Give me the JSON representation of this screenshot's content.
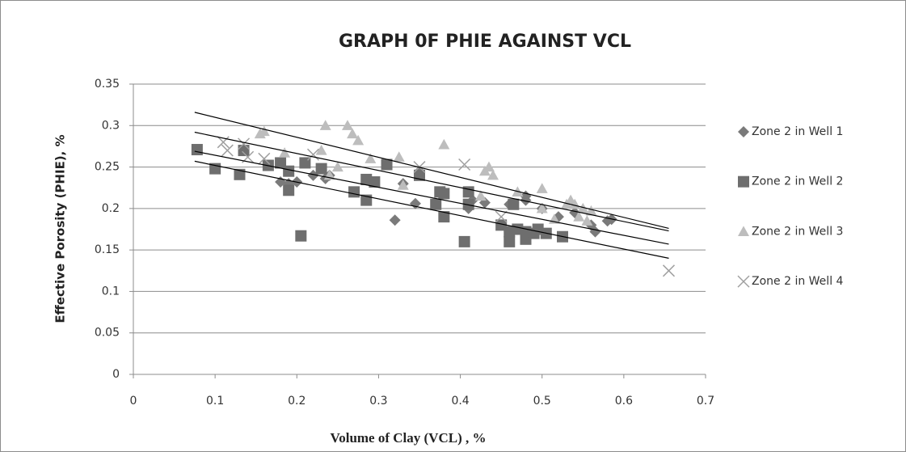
{
  "chart_data": {
    "type": "scatter",
    "title": "GRAPH 0F PHIE AGAINST VCL",
    "x_label": "Volume of Clay (VCL) , %",
    "y_label": "Effective Porosity (PHIE), %",
    "xlim": [
      0,
      0.7
    ],
    "ylim": [
      0,
      0.35
    ],
    "xticks": [
      0,
      0.1,
      0.2,
      0.3,
      0.4,
      0.5,
      0.6,
      0.7
    ],
    "yticks": [
      0,
      0.05,
      0.1,
      0.15,
      0.2,
      0.25,
      0.3,
      0.35
    ],
    "grid": true,
    "legend": "right",
    "series": [
      {
        "name": "Zone 2 in Well 1",
        "color": "#7a7a7a",
        "marker": "diamond",
        "x": [
          0.18,
          0.19,
          0.2,
          0.22,
          0.235,
          0.24,
          0.32,
          0.33,
          0.345,
          0.35,
          0.38,
          0.41,
          0.415,
          0.43,
          0.46,
          0.48,
          0.48,
          0.52,
          0.56,
          0.565,
          0.58,
          0.585,
          0.54,
          0.5
        ],
        "values": [
          0.232,
          0.23,
          0.232,
          0.24,
          0.236,
          0.24,
          0.186,
          0.23,
          0.206,
          0.245,
          0.22,
          0.2,
          0.21,
          0.207,
          0.205,
          0.21,
          0.215,
          0.19,
          0.18,
          0.172,
          0.185,
          0.187,
          0.195,
          0.2
        ]
      },
      {
        "name": "Zone 2 in Well 2",
        "color": "#6e6e6e",
        "marker": "square",
        "x": [
          0.078,
          0.1,
          0.13,
          0.135,
          0.165,
          0.18,
          0.19,
          0.19,
          0.205,
          0.21,
          0.23,
          0.27,
          0.285,
          0.285,
          0.295,
          0.31,
          0.35,
          0.37,
          0.375,
          0.38,
          0.38,
          0.405,
          0.41,
          0.41,
          0.45,
          0.46,
          0.46,
          0.47,
          0.48,
          0.48,
          0.49,
          0.495,
          0.505,
          0.525,
          0.465
        ],
        "values": [
          0.271,
          0.248,
          0.241,
          0.27,
          0.252,
          0.255,
          0.245,
          0.222,
          0.167,
          0.255,
          0.248,
          0.22,
          0.21,
          0.235,
          0.232,
          0.253,
          0.24,
          0.205,
          0.22,
          0.218,
          0.19,
          0.16,
          0.22,
          0.205,
          0.18,
          0.16,
          0.172,
          0.175,
          0.163,
          0.172,
          0.17,
          0.175,
          0.17,
          0.166,
          0.205
        ]
      },
      {
        "name": "Zone 2 in Well 3",
        "color": "#bdbdbd",
        "marker": "triangle",
        "x": [
          0.155,
          0.16,
          0.185,
          0.23,
          0.235,
          0.24,
          0.25,
          0.262,
          0.268,
          0.275,
          0.29,
          0.325,
          0.33,
          0.38,
          0.425,
          0.43,
          0.435,
          0.44,
          0.47,
          0.5,
          0.5,
          0.515,
          0.53,
          0.535,
          0.54,
          0.545,
          0.55,
          0.555,
          0.56
        ],
        "values": [
          0.29,
          0.293,
          0.267,
          0.27,
          0.3,
          0.24,
          0.25,
          0.3,
          0.29,
          0.282,
          0.26,
          0.262,
          0.228,
          0.277,
          0.215,
          0.245,
          0.25,
          0.24,
          0.22,
          0.2,
          0.224,
          0.187,
          0.205,
          0.21,
          0.205,
          0.19,
          0.2,
          0.185,
          0.197
        ]
      },
      {
        "name": "Zone 2 in Well 4",
        "color": "#a0a0a0",
        "marker": "x",
        "x": [
          0.11,
          0.115,
          0.135,
          0.14,
          0.16,
          0.22,
          0.35,
          0.405,
          0.45,
          0.655
        ],
        "values": [
          0.28,
          0.27,
          0.278,
          0.262,
          0.26,
          0.265,
          0.25,
          0.253,
          0.19,
          0.125
        ]
      }
    ],
    "trendlines": [
      {
        "color": "#000000",
        "x": [
          0.075,
          0.655
        ],
        "y": [
          0.316,
          0.176
        ]
      },
      {
        "color": "#000000",
        "x": [
          0.075,
          0.655
        ],
        "y": [
          0.292,
          0.173
        ]
      },
      {
        "color": "#000000",
        "x": [
          0.075,
          0.655
        ],
        "y": [
          0.269,
          0.157
        ]
      },
      {
        "color": "#000000",
        "x": [
          0.075,
          0.655
        ],
        "y": [
          0.257,
          0.14
        ]
      }
    ]
  }
}
